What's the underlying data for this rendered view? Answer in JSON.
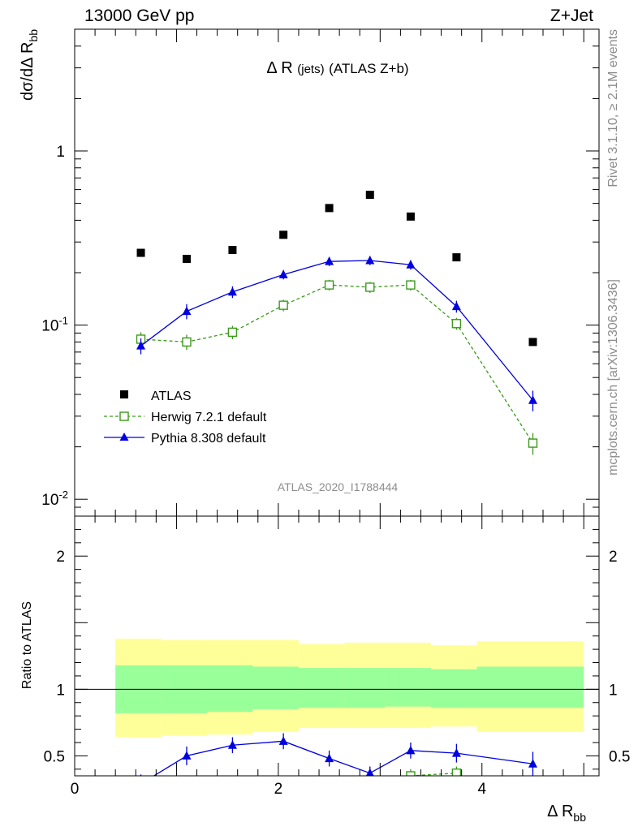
{
  "header": {
    "energy_label": "13000 GeV pp",
    "process_label": "Z+Jet"
  },
  "plot_title": {
    "main": "Δ R",
    "sub": "(jets)",
    "tail": "(ATLAS Z+b)"
  },
  "side_labels": {
    "rivet": "Rivet 3.1.10, ≥ 2.1M events",
    "mcplots": "mcplots.cern.ch [arXiv:1306.3436]"
  },
  "watermark": "ATLAS_2020_I1788444",
  "y_main_label": {
    "base": "dσ/dΔ R",
    "sub": "bb"
  },
  "y_ratio_label": "Ratio to ATLAS",
  "x_label": {
    "base": "Δ R",
    "sub": "bb"
  },
  "legend": [
    {
      "label": "ATLAS",
      "marker": "square-filled",
      "color": "#000000"
    },
    {
      "label": "Herwig 7.2.1 default",
      "marker": "square-open",
      "color": "#3a9a1a"
    },
    {
      "label": "Pythia 8.308 default",
      "marker": "triangle-filled",
      "color": "#0000e0"
    }
  ],
  "chart_data": {
    "type": "scatter",
    "x_edges": [
      0.4,
      0.85,
      1.3,
      1.75,
      2.2,
      2.65,
      3.05,
      3.5,
      3.95,
      5.0
    ],
    "x": [
      0.65,
      1.1,
      1.55,
      2.05,
      2.5,
      2.9,
      3.3,
      3.75,
      4.5
    ],
    "main": {
      "yscale": "log",
      "ylim": [
        0.008,
        5.0
      ],
      "yticks": [
        {
          "value": 0.01,
          "base": "10",
          "exp": "-2"
        },
        {
          "value": 0.1,
          "base": "10",
          "exp": "-1"
        },
        {
          "value": 1,
          "base": "1",
          "exp": ""
        }
      ],
      "series": [
        {
          "name": "ATLAS",
          "values": [
            0.26,
            0.24,
            0.27,
            0.33,
            0.47,
            0.56,
            0.42,
            0.245,
            0.08
          ],
          "errors": [
            0,
            0,
            0,
            0,
            0,
            0,
            0,
            0,
            0
          ]
        },
        {
          "name": "Herwig 7.2.1 default",
          "values": [
            0.083,
            0.08,
            0.091,
            0.13,
            0.17,
            0.165,
            0.17,
            0.102,
            0.021
          ],
          "errors": [
            0.008,
            0.008,
            0.008,
            0.01,
            0.012,
            0.012,
            0.012,
            0.008,
            0.003
          ]
        },
        {
          "name": "Pythia 8.308 default",
          "values": [
            0.076,
            0.12,
            0.155,
            0.195,
            0.232,
            0.235,
            0.222,
            0.128,
            0.037
          ],
          "errors": [
            0.008,
            0.012,
            0.012,
            0.012,
            0.014,
            0.014,
            0.014,
            0.01,
            0.005
          ]
        }
      ]
    },
    "ratio": {
      "ylim": [
        0.35,
        2.3
      ],
      "yticks": [
        0.5,
        1,
        2
      ],
      "band_inner": [
        [
          0.82,
          1.18
        ],
        [
          0.82,
          1.18
        ],
        [
          0.83,
          1.18
        ],
        [
          0.85,
          1.17
        ],
        [
          0.86,
          1.16
        ],
        [
          0.86,
          1.16
        ],
        [
          0.87,
          1.16
        ],
        [
          0.86,
          1.15
        ],
        [
          0.86,
          1.17
        ]
      ],
      "band_outer": [
        [
          0.64,
          1.38
        ],
        [
          0.65,
          1.37
        ],
        [
          0.66,
          1.37
        ],
        [
          0.68,
          1.37
        ],
        [
          0.71,
          1.34
        ],
        [
          0.71,
          1.35
        ],
        [
          0.71,
          1.35
        ],
        [
          0.72,
          1.33
        ],
        [
          0.68,
          1.36
        ]
      ],
      "series": [
        {
          "name": "Herwig 7.2.1 default",
          "x": [
            3.3,
            3.75
          ],
          "values": [
            0.35,
            0.37
          ],
          "errors": [
            0.05,
            0.05
          ]
        },
        {
          "name": "Pythia 8.308 default",
          "x": [
            0.65,
            1.1,
            1.55,
            2.05,
            2.5,
            2.9,
            3.3,
            3.75,
            4.5
          ],
          "values": [
            0.29,
            0.5,
            0.58,
            0.61,
            0.48,
            0.37,
            0.54,
            0.52,
            0.44
          ],
          "errors": [
            0.07,
            0.07,
            0.06,
            0.06,
            0.06,
            0.05,
            0.06,
            0.07,
            0.09
          ]
        }
      ]
    },
    "x_axis": {
      "xlim": [
        0,
        5.15
      ],
      "ticks": [
        0,
        2,
        4
      ]
    }
  }
}
